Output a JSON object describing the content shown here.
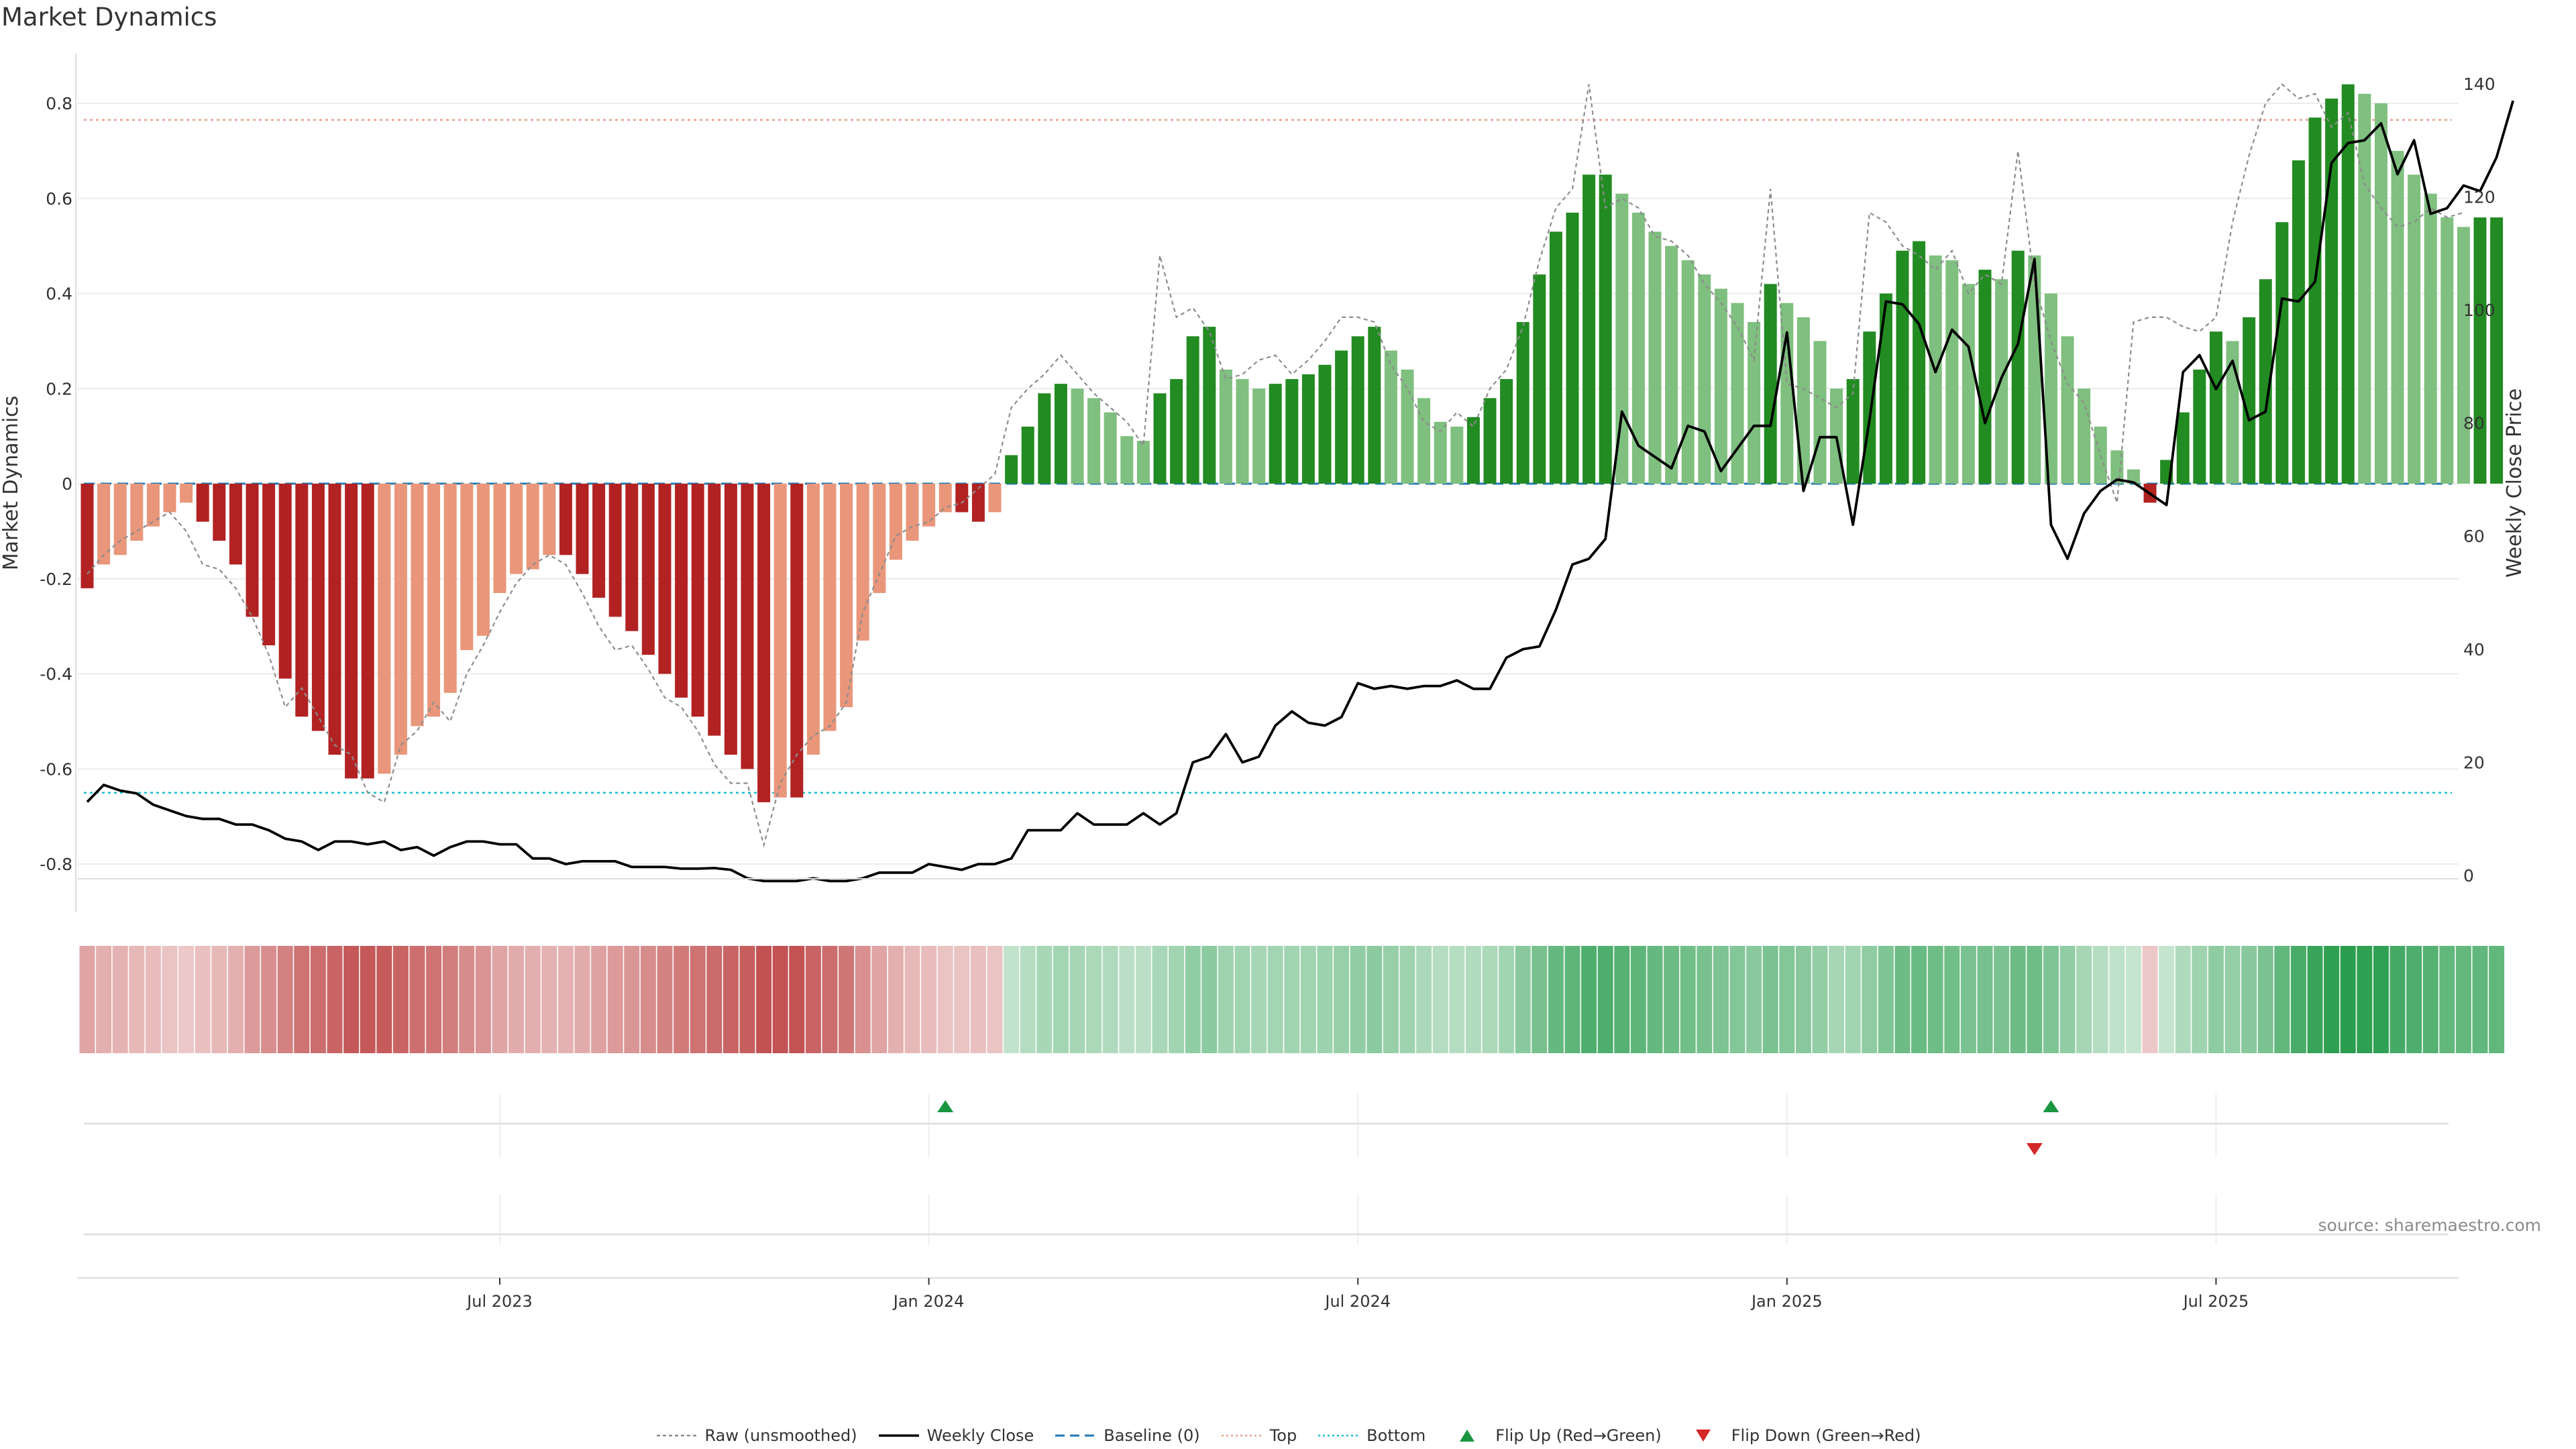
{
  "title": "Market Dynamics",
  "source": "source: sharemaestro.com",
  "colors": {
    "bar_strong_red": "#b22222",
    "bar_light_red": "#e9967a",
    "bar_strong_green": "#228b22",
    "bar_light_green": "#7fbf7f",
    "raw_line": "#8c8c8c",
    "close_line": "#000000",
    "baseline": "#1f77b4",
    "top_line": "#e8a090",
    "bottom_line": "#17becf",
    "flip_up": "#1a9641",
    "flip_down": "#d62728"
  },
  "legend": {
    "raw": "Raw (unsmoothed)",
    "close": "Weekly Close",
    "baseline": "Baseline (0)",
    "top": "Top",
    "bottom": "Bottom",
    "flip_up": "Flip Up (Red→Green)",
    "flip_down": "Flip Down (Green→Red)"
  },
  "chart_data": {
    "type": "bar",
    "x_start": "2023-01-06",
    "x_interval": "weekly",
    "ylabel": "Market Dynamics",
    "y2label": "Weekly Close Price",
    "ylim": [
      -0.9,
      0.92
    ],
    "y2lim": [
      -5,
      140
    ],
    "yticks": [
      "-0.8",
      "-0.6",
      "-0.4",
      "-0.2",
      "0",
      "0.2",
      "0.4",
      "0.6",
      "0.8"
    ],
    "y2ticks": [
      "0",
      "20",
      "40",
      "60",
      "80",
      "100",
      "120",
      "140"
    ],
    "xticks": [
      {
        "label": "Jul 2023",
        "index": 25
      },
      {
        "label": "Jan 2024",
        "index": 51
      },
      {
        "label": "Jul 2024",
        "index": 77
      },
      {
        "label": "Jan 2025",
        "index": 103
      },
      {
        "label": "Jul 2025",
        "index": 129
      }
    ],
    "top_level": 0.765,
    "bottom_level": -0.65,
    "smoothed": [
      -0.22,
      -0.17,
      -0.15,
      -0.12,
      -0.09,
      -0.06,
      -0.04,
      -0.08,
      -0.12,
      -0.17,
      -0.28,
      -0.34,
      -0.41,
      -0.49,
      -0.52,
      -0.57,
      -0.62,
      -0.62,
      -0.61,
      -0.57,
      -0.51,
      -0.49,
      -0.44,
      -0.35,
      -0.32,
      -0.23,
      -0.19,
      -0.18,
      -0.15,
      -0.15,
      -0.19,
      -0.24,
      -0.28,
      -0.31,
      -0.36,
      -0.4,
      -0.45,
      -0.49,
      -0.53,
      -0.57,
      -0.6,
      -0.67,
      -0.66,
      -0.66,
      -0.57,
      -0.52,
      -0.47,
      -0.33,
      -0.23,
      -0.16,
      -0.12,
      -0.09,
      -0.06,
      -0.06,
      -0.08,
      -0.06,
      0.06,
      0.12,
      0.19,
      0.21,
      0.2,
      0.18,
      0.15,
      0.1,
      0.09,
      0.19,
      0.22,
      0.31,
      0.33,
      0.24,
      0.22,
      0.2,
      0.21,
      0.22,
      0.23,
      0.25,
      0.28,
      0.31,
      0.33,
      0.28,
      0.24,
      0.18,
      0.13,
      0.12,
      0.14,
      0.18,
      0.22,
      0.34,
      0.44,
      0.53,
      0.57,
      0.65,
      0.65,
      0.61,
      0.57,
      0.53,
      0.5,
      0.47,
      0.44,
      0.41,
      0.38,
      0.34,
      0.42,
      0.38,
      0.35,
      0.3,
      0.2,
      0.22,
      0.32,
      0.4,
      0.49,
      0.51,
      0.48,
      0.47,
      0.42,
      0.45,
      0.43,
      0.49,
      0.48,
      0.4,
      0.31,
      0.2,
      0.12,
      0.07,
      0.03,
      -0.04,
      0.05,
      0.15,
      0.24,
      0.32,
      0.3,
      0.35,
      0.43,
      0.55,
      0.68,
      0.77,
      0.81,
      0.84,
      0.82,
      0.8,
      0.7,
      0.65,
      0.61,
      0.56,
      0.54,
      0.56,
      0.56
    ],
    "raw": [
      -0.19,
      -0.15,
      -0.12,
      -0.1,
      -0.08,
      -0.06,
      -0.1,
      -0.17,
      -0.18,
      -0.22,
      -0.28,
      -0.36,
      -0.47,
      -0.43,
      -0.49,
      -0.55,
      -0.57,
      -0.65,
      -0.67,
      -0.55,
      -0.52,
      -0.46,
      -0.5,
      -0.4,
      -0.34,
      -0.27,
      -0.21,
      -0.17,
      -0.15,
      -0.17,
      -0.23,
      -0.3,
      -0.35,
      -0.34,
      -0.39,
      -0.45,
      -0.47,
      -0.52,
      -0.59,
      -0.63,
      -0.63,
      -0.76,
      -0.63,
      -0.57,
      -0.53,
      -0.51,
      -0.46,
      -0.27,
      -0.19,
      -0.11,
      -0.09,
      -0.08,
      -0.05,
      -0.04,
      -0.01,
      0.02,
      0.16,
      0.2,
      0.23,
      0.27,
      0.23,
      0.19,
      0.16,
      0.13,
      0.08,
      0.48,
      0.35,
      0.37,
      0.32,
      0.22,
      0.23,
      0.26,
      0.27,
      0.23,
      0.26,
      0.3,
      0.35,
      0.35,
      0.34,
      0.25,
      0.2,
      0.13,
      0.11,
      0.15,
      0.12,
      0.2,
      0.24,
      0.33,
      0.47,
      0.58,
      0.62,
      0.84,
      0.58,
      0.6,
      0.58,
      0.52,
      0.51,
      0.48,
      0.42,
      0.38,
      0.33,
      0.26,
      0.62,
      0.21,
      0.2,
      0.18,
      0.16,
      0.19,
      0.57,
      0.55,
      0.5,
      0.48,
      0.45,
      0.49,
      0.4,
      0.44,
      0.42,
      0.7,
      0.42,
      0.3,
      0.21,
      0.17,
      0.06,
      -0.04,
      0.34,
      0.35,
      0.35,
      0.33,
      0.32,
      0.35,
      0.55,
      0.69,
      0.8,
      0.84,
      0.81,
      0.82,
      0.75,
      0.78,
      0.63,
      0.58,
      0.54,
      0.55,
      0.58,
      0.56,
      0.57
    ],
    "close": [
      13,
      16,
      15,
      14.5,
      12.5,
      11.5,
      10.5,
      10,
      10,
      9,
      9,
      8,
      6.5,
      6,
      4.5,
      6,
      6,
      5.5,
      6,
      4.5,
      5,
      3.5,
      5,
      6,
      6,
      5.5,
      5.5,
      3,
      3,
      2,
      2.5,
      2.5,
      2.5,
      1.5,
      1.5,
      1.5,
      1.2,
      1.2,
      1.3,
      1,
      -0.5,
      -1,
      -1,
      -1,
      -0.5,
      -1,
      -1,
      -0.5,
      0.5,
      0.5,
      0.5,
      2,
      1.5,
      1,
      2,
      2,
      3,
      8,
      8,
      8,
      11,
      9,
      9,
      9,
      11,
      9,
      11,
      20,
      21,
      25,
      20,
      21,
      26.5,
      29,
      27,
      26.5,
      28,
      34,
      33,
      33.5,
      33,
      33.5,
      33.5,
      34.5,
      33,
      33,
      38.5,
      40,
      40.5,
      47,
      55,
      56,
      59.5,
      82,
      76,
      74,
      72,
      79.5,
      78.5,
      71.5,
      75.5,
      79.5,
      79.5,
      96,
      68,
      77.5,
      77.5,
      62,
      80.5,
      101.5,
      101,
      97.5,
      89,
      96.5,
      93.5,
      80,
      88,
      94,
      109,
      62,
      56,
      64,
      68,
      70,
      69.5,
      67.5,
      65.5,
      89,
      92,
      86,
      91,
      80.5,
      82,
      102,
      101.5,
      105,
      126,
      129.5,
      130,
      133,
      124,
      130,
      117,
      118,
      122,
      121,
      127,
      137
    ]
  },
  "markers": {
    "flip_up": [
      52,
      119
    ],
    "flip_down": [
      118
    ]
  }
}
